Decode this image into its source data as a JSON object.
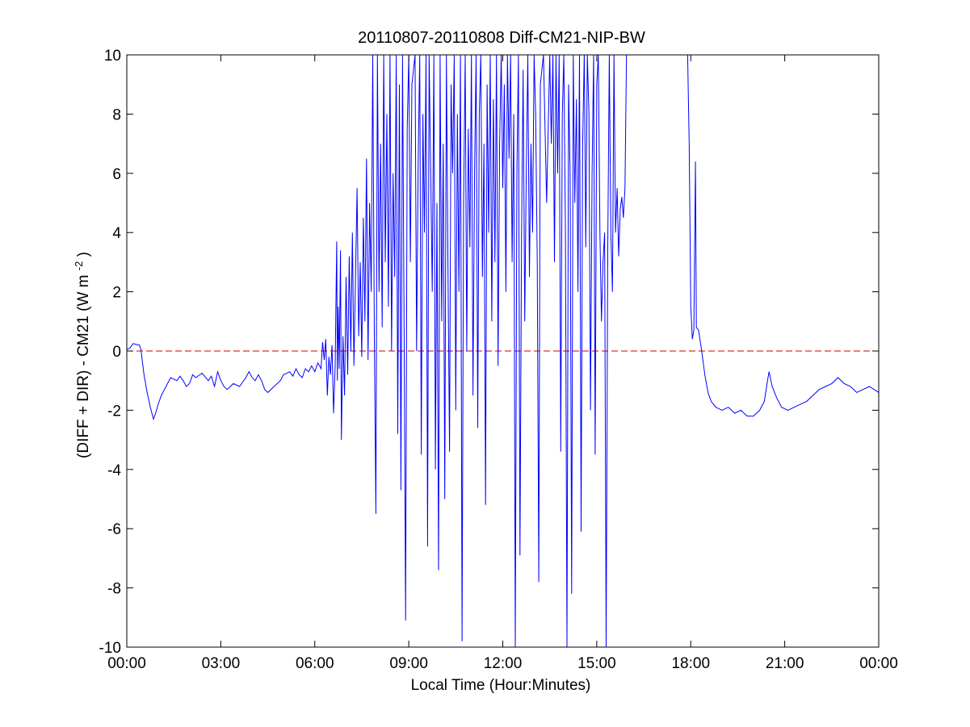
{
  "chart_data": {
    "type": "line",
    "title": "20110807-20110808 Diff-CM21-NIP-BW",
    "xlabel": "Local Time (Hour:Minutes)",
    "ylabel": "(DIFF + DIR) - CM21 (W m-2)",
    "ylabel_parts": {
      "main": "(DIFF + DIR) - CM21 (W m",
      "superscript": "-2",
      "close": ")"
    },
    "xlim": [
      0,
      24
    ],
    "ylim": [
      -10,
      10
    ],
    "x_unit": "hours (local time)",
    "x_ticks": [
      0,
      3,
      6,
      9,
      12,
      15,
      18,
      21,
      24
    ],
    "x_tick_labels": [
      "00:00",
      "03:00",
      "06:00",
      "09:00",
      "12:00",
      "15:00",
      "18:00",
      "21:00",
      "00:00"
    ],
    "y_ticks": [
      -10,
      -8,
      -6,
      -4,
      -2,
      0,
      2,
      4,
      6,
      8,
      10
    ],
    "y_tick_labels": [
      "-10",
      "-8",
      "-6",
      "-4",
      "-2",
      "0",
      "2",
      "4",
      "6",
      "8",
      "10"
    ],
    "grid": false,
    "reference_line": {
      "y": 0,
      "style": "dashed",
      "color": "#cc0000"
    },
    "series": [
      {
        "color": "#0000ff",
        "points": [
          [
            0.0,
            0.05
          ],
          [
            0.1,
            0.1
          ],
          [
            0.2,
            0.25
          ],
          [
            0.3,
            0.22
          ],
          [
            0.4,
            0.2
          ],
          [
            0.45,
            0.05
          ],
          [
            0.55,
            -0.8
          ],
          [
            0.65,
            -1.4
          ],
          [
            0.75,
            -1.9
          ],
          [
            0.85,
            -2.3
          ],
          [
            0.92,
            -2.1
          ],
          [
            1.0,
            -1.8
          ],
          [
            1.1,
            -1.5
          ],
          [
            1.2,
            -1.3
          ],
          [
            1.3,
            -1.1
          ],
          [
            1.4,
            -0.9
          ],
          [
            1.5,
            -0.95
          ],
          [
            1.6,
            -1.0
          ],
          [
            1.7,
            -0.85
          ],
          [
            1.8,
            -1.0
          ],
          [
            1.9,
            -1.2
          ],
          [
            2.0,
            -1.1
          ],
          [
            2.1,
            -0.8
          ],
          [
            2.2,
            -0.9
          ],
          [
            2.4,
            -0.75
          ],
          [
            2.6,
            -1.0
          ],
          [
            2.7,
            -0.85
          ],
          [
            2.8,
            -1.2
          ],
          [
            2.9,
            -0.7
          ],
          [
            3.0,
            -1.0
          ],
          [
            3.1,
            -1.2
          ],
          [
            3.2,
            -1.3
          ],
          [
            3.4,
            -1.1
          ],
          [
            3.6,
            -1.2
          ],
          [
            3.8,
            -0.9
          ],
          [
            3.9,
            -0.7
          ],
          [
            4.0,
            -0.9
          ],
          [
            4.1,
            -1.0
          ],
          [
            4.2,
            -0.8
          ],
          [
            4.3,
            -1.0
          ],
          [
            4.4,
            -1.3
          ],
          [
            4.5,
            -1.4
          ],
          [
            4.7,
            -1.2
          ],
          [
            4.9,
            -1.0
          ],
          [
            5.0,
            -0.8
          ],
          [
            5.2,
            -0.7
          ],
          [
            5.3,
            -0.85
          ],
          [
            5.4,
            -0.6
          ],
          [
            5.5,
            -0.8
          ],
          [
            5.6,
            -0.9
          ],
          [
            5.7,
            -0.6
          ],
          [
            5.8,
            -0.7
          ],
          [
            5.9,
            -0.5
          ],
          [
            6.0,
            -0.7
          ],
          [
            6.1,
            -0.4
          ],
          [
            6.2,
            -0.6
          ],
          [
            6.25,
            0.3
          ],
          [
            6.3,
            -0.3
          ],
          [
            6.35,
            0.4
          ],
          [
            6.4,
            -1.5
          ],
          [
            6.45,
            -0.2
          ],
          [
            6.5,
            -0.8
          ],
          [
            6.55,
            0.2
          ],
          [
            6.6,
            -2.1
          ],
          [
            6.65,
            -0.5
          ],
          [
            6.7,
            3.7
          ],
          [
            6.72,
            -1.0
          ],
          [
            6.75,
            1.5
          ],
          [
            6.78,
            -0.6
          ],
          [
            6.82,
            3.4
          ],
          [
            6.85,
            -3.0
          ],
          [
            6.9,
            0.5
          ],
          [
            6.95,
            -1.5
          ],
          [
            7.0,
            2.5
          ],
          [
            7.05,
            -0.8
          ],
          [
            7.1,
            3.2
          ],
          [
            7.15,
            0.0
          ],
          [
            7.2,
            4.0
          ],
          [
            7.25,
            -0.5
          ],
          [
            7.3,
            2.5
          ],
          [
            7.35,
            5.5
          ],
          [
            7.4,
            0.5
          ],
          [
            7.45,
            3.0
          ],
          [
            7.5,
            -0.2
          ],
          [
            7.55,
            4.5
          ],
          [
            7.6,
            1.0
          ],
          [
            7.65,
            6.5
          ],
          [
            7.7,
            -0.3
          ],
          [
            7.75,
            5.0
          ],
          [
            7.8,
            2.0
          ],
          [
            7.85,
            10.0
          ],
          [
            7.9,
            0.5
          ],
          [
            7.95,
            -5.5
          ],
          [
            8.0,
            10.0
          ],
          [
            8.05,
            2.0
          ],
          [
            8.1,
            7.0
          ],
          [
            8.15,
            0.8
          ],
          [
            8.2,
            10.0
          ],
          [
            8.25,
            3.0
          ],
          [
            8.3,
            8.0
          ],
          [
            8.35,
            1.5
          ],
          [
            8.4,
            10.0
          ],
          [
            8.45,
            0.0
          ],
          [
            8.5,
            6.0
          ],
          [
            8.55,
            2.5
          ],
          [
            8.6,
            10.0
          ],
          [
            8.65,
            -2.8
          ],
          [
            8.7,
            9.0
          ],
          [
            8.75,
            -4.7
          ],
          [
            8.8,
            10.0
          ],
          [
            8.85,
            1.0
          ],
          [
            8.9,
            -9.1
          ],
          [
            8.95,
            7.5
          ],
          [
            9.0,
            10.0
          ],
          [
            9.05,
            3.0
          ],
          [
            9.1,
            9.0
          ],
          [
            9.2,
            10.0
          ],
          [
            9.25,
            0.0
          ],
          [
            9.3,
            6.5
          ],
          [
            9.35,
            10.0
          ],
          [
            9.4,
            -3.5
          ],
          [
            9.45,
            8.0
          ],
          [
            9.5,
            4.0
          ],
          [
            9.55,
            10.0
          ],
          [
            9.6,
            -6.6
          ],
          [
            9.65,
            10.0
          ],
          [
            9.7,
            6.0
          ],
          [
            9.75,
            2.0
          ],
          [
            9.8,
            10.0
          ],
          [
            9.85,
            -4.0
          ],
          [
            9.9,
            5.0
          ],
          [
            9.95,
            -7.4
          ],
          [
            10.0,
            10.0
          ],
          [
            10.05,
            1.0
          ],
          [
            10.1,
            7.0
          ],
          [
            10.15,
            -5.0
          ],
          [
            10.2,
            10.0
          ],
          [
            10.25,
            3.0
          ],
          [
            10.3,
            -3.4
          ],
          [
            10.35,
            9.0
          ],
          [
            10.4,
            6.0
          ],
          [
            10.45,
            10.0
          ],
          [
            10.5,
            -2.0
          ],
          [
            10.55,
            8.0
          ],
          [
            10.6,
            2.0
          ],
          [
            10.65,
            10.0
          ],
          [
            10.7,
            -9.8
          ],
          [
            10.75,
            5.0
          ],
          [
            10.8,
            10.0
          ],
          [
            10.85,
            0.0
          ],
          [
            10.9,
            7.5
          ],
          [
            10.95,
            3.5
          ],
          [
            11.0,
            10.0
          ],
          [
            11.05,
            -1.5
          ],
          [
            11.1,
            6.0
          ],
          [
            11.15,
            10.0
          ],
          [
            11.2,
            -2.6
          ],
          [
            11.25,
            8.0
          ],
          [
            11.3,
            10.0
          ],
          [
            11.35,
            2.5
          ],
          [
            11.4,
            7.0
          ],
          [
            11.45,
            -5.2
          ],
          [
            11.5,
            9.0
          ],
          [
            11.55,
            4.0
          ],
          [
            11.6,
            10.0
          ],
          [
            11.65,
            1.0
          ],
          [
            11.7,
            8.5
          ],
          [
            11.75,
            3.0
          ],
          [
            11.8,
            10.0
          ],
          [
            11.85,
            -0.5
          ],
          [
            11.9,
            7.0
          ],
          [
            11.95,
            10.0
          ],
          [
            12.0,
            5.5
          ],
          [
            12.05,
            9.0
          ],
          [
            12.1,
            2.0
          ],
          [
            12.15,
            10.0
          ],
          [
            12.2,
            6.5
          ],
          [
            12.25,
            10.0
          ],
          [
            12.3,
            3.0
          ],
          [
            12.35,
            8.0
          ],
          [
            12.4,
            -10.0
          ],
          [
            12.45,
            6.0
          ],
          [
            12.5,
            10.0
          ],
          [
            12.55,
            -6.9
          ],
          [
            12.6,
            4.0
          ],
          [
            12.65,
            9.5
          ],
          [
            12.7,
            1.0
          ],
          [
            12.75,
            6.0
          ],
          [
            12.8,
            10.0
          ],
          [
            12.85,
            2.5
          ],
          [
            12.9,
            7.0
          ],
          [
            12.95,
            4.0
          ],
          [
            13.0,
            10.0
          ],
          [
            13.05,
            8.0
          ],
          [
            13.1,
            3.0
          ],
          [
            13.15,
            -7.8
          ],
          [
            13.2,
            9.0
          ],
          [
            13.3,
            10.0
          ],
          [
            13.4,
            5.0
          ],
          [
            13.5,
            10.0
          ],
          [
            13.55,
            7.0
          ],
          [
            13.6,
            10.0
          ],
          [
            13.65,
            3.0
          ],
          [
            13.7,
            10.0
          ],
          [
            13.75,
            6.0
          ],
          [
            13.8,
            10.0
          ],
          [
            13.85,
            -3.4
          ],
          [
            13.9,
            8.0
          ],
          [
            13.95,
            10.0
          ],
          [
            14.0,
            4.0
          ],
          [
            14.05,
            -10.0
          ],
          [
            14.1,
            9.0
          ],
          [
            14.15,
            6.0
          ],
          [
            14.2,
            -8.2
          ],
          [
            14.25,
            10.0
          ],
          [
            14.3,
            5.0
          ],
          [
            14.35,
            8.5
          ],
          [
            14.4,
            2.0
          ],
          [
            14.45,
            10.0
          ],
          [
            14.5,
            -6.1
          ],
          [
            14.55,
            7.0
          ],
          [
            14.6,
            10.0
          ],
          [
            14.65,
            3.5
          ],
          [
            14.7,
            10.0
          ],
          [
            14.75,
            8.0
          ],
          [
            14.8,
            -2.0
          ],
          [
            14.85,
            6.0
          ],
          [
            14.9,
            10.0
          ],
          [
            14.95,
            -3.5
          ],
          [
            15.0,
            9.0
          ],
          [
            15.05,
            10.0
          ],
          [
            15.1,
            4.0
          ],
          [
            15.15,
            1.0
          ],
          [
            15.2,
            3.0
          ],
          [
            15.25,
            4.0
          ],
          [
            15.3,
            -10.0
          ],
          [
            15.35,
            3.5
          ],
          [
            15.4,
            10.0
          ],
          [
            15.45,
            4.0
          ],
          [
            15.5,
            2.0
          ],
          [
            15.55,
            10.0
          ],
          [
            15.6,
            4.0
          ],
          [
            15.65,
            5.5
          ],
          [
            15.7,
            3.2
          ],
          [
            15.75,
            4.8
          ],
          [
            15.8,
            5.2
          ],
          [
            15.85,
            4.5
          ],
          [
            15.9,
            5.5
          ],
          [
            15.95,
            10.0
          ],
          [
            16.0,
            10.0
          ]
        ],
        "segments_after_gap": [
          [
            17.9,
            10.0
          ],
          [
            17.95,
            7.0
          ],
          [
            18.0,
            1.5
          ],
          [
            18.05,
            0.4
          ],
          [
            18.1,
            0.7
          ],
          [
            18.15,
            6.4
          ],
          [
            18.18,
            0.8
          ],
          [
            18.25,
            0.7
          ],
          [
            18.35,
            0.0
          ],
          [
            18.45,
            -0.8
          ],
          [
            18.55,
            -1.4
          ],
          [
            18.65,
            -1.7
          ],
          [
            18.8,
            -1.9
          ],
          [
            19.0,
            -2.0
          ],
          [
            19.2,
            -1.9
          ],
          [
            19.4,
            -2.1
          ],
          [
            19.6,
            -2.0
          ],
          [
            19.8,
            -2.2
          ],
          [
            20.0,
            -2.2
          ],
          [
            20.2,
            -2.0
          ],
          [
            20.35,
            -1.7
          ],
          [
            20.45,
            -1.0
          ],
          [
            20.5,
            -0.7
          ],
          [
            20.6,
            -1.2
          ],
          [
            20.75,
            -1.6
          ],
          [
            20.9,
            -1.9
          ],
          [
            21.1,
            -2.0
          ],
          [
            21.3,
            -1.9
          ],
          [
            21.5,
            -1.8
          ],
          [
            21.7,
            -1.7
          ],
          [
            21.9,
            -1.5
          ],
          [
            22.1,
            -1.3
          ],
          [
            22.3,
            -1.2
          ],
          [
            22.5,
            -1.1
          ],
          [
            22.7,
            -0.9
          ],
          [
            22.9,
            -1.1
          ],
          [
            23.1,
            -1.2
          ],
          [
            23.3,
            -1.4
          ],
          [
            23.5,
            -1.3
          ],
          [
            23.7,
            -1.2
          ],
          [
            23.85,
            -1.3
          ],
          [
            24.0,
            -1.4
          ]
        ]
      }
    ]
  }
}
